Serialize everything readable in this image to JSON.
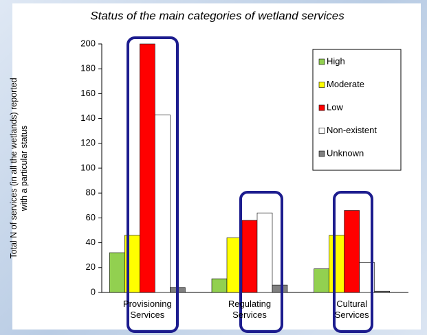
{
  "chart_data": {
    "type": "bar",
    "title": "Status of the main categories of wetland services",
    "ylabel": [
      "Total N of services (in all the wetlands) reported",
      "with a particular status"
    ],
    "categories": [
      "Provisioning Services",
      "Regulating Services",
      "Cultural Services"
    ],
    "series": [
      {
        "name": "High",
        "color": "#92d050",
        "values": [
          32,
          11,
          19
        ]
      },
      {
        "name": "Moderate",
        "color": "#ffff00",
        "values": [
          46,
          44,
          46
        ]
      },
      {
        "name": "Low",
        "color": "#ff0000",
        "values": [
          200,
          58,
          66
        ]
      },
      {
        "name": "Non-existent",
        "color": "#ffffff",
        "values": [
          143,
          64,
          24
        ]
      },
      {
        "name": "Unknown",
        "color": "#808080",
        "values": [
          4,
          6,
          1
        ]
      }
    ],
    "ylim": [
      0,
      200
    ],
    "yticks": [
      0,
      20,
      40,
      60,
      80,
      100,
      120,
      140,
      160,
      180,
      200
    ],
    "legend": "upper right"
  }
}
